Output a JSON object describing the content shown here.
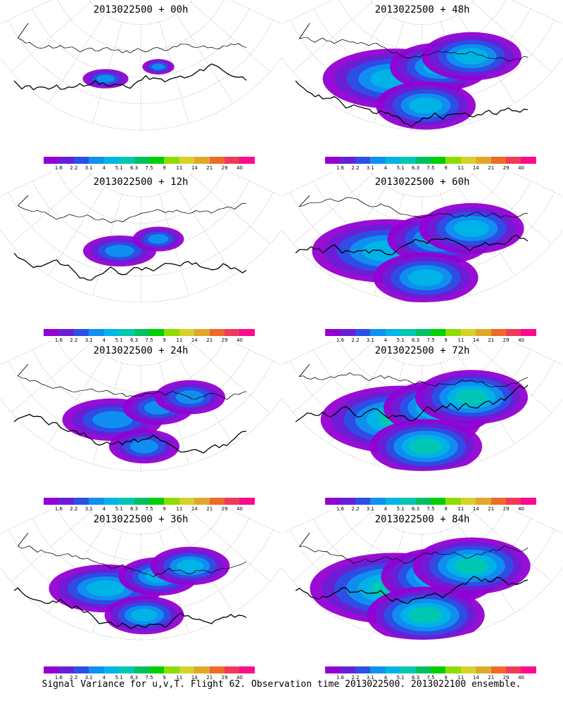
{
  "caption": "Signal Variance for u,v,T. Flight 62. Observation time 2013022500. 2013022100 ensemble.",
  "colorbar": {
    "labels": [
      "1.6",
      "2.2",
      "3.1",
      "4",
      "5.1",
      "6.3",
      "7.5",
      "9",
      "11",
      "14",
      "21",
      "29",
      "40"
    ],
    "colors": [
      "#9400d3",
      "#6a1fd6",
      "#2b50e6",
      "#0f91f0",
      "#00b5e6",
      "#00c8b0",
      "#00c060",
      "#00cf00",
      "#8fdc00",
      "#d6d22a",
      "#e0a82a",
      "#ee6a2a",
      "#f03a5a",
      "#ff0a8c"
    ]
  },
  "panels": [
    {
      "title": "2013022500 + 00h",
      "spread": 0.25,
      "intensity": 0.45,
      "offset": 0
    },
    {
      "title": "2013022500 + 48h",
      "spread": 0.78,
      "intensity": 0.55,
      "offset": 1
    },
    {
      "title": "2013022500 + 12h",
      "spread": 0.4,
      "intensity": 0.4,
      "offset": 2
    },
    {
      "title": "2013022500 + 60h",
      "spread": 0.82,
      "intensity": 0.55,
      "offset": 3
    },
    {
      "title": "2013022500 + 24h",
      "spread": 0.55,
      "intensity": 0.45,
      "offset": 4
    },
    {
      "title": "2013022500 + 72h",
      "spread": 0.88,
      "intensity": 0.62,
      "offset": 5
    },
    {
      "title": "2013022500 + 36h",
      "spread": 0.62,
      "intensity": 0.5,
      "offset": 6
    },
    {
      "title": "2013022500 + 84h",
      "spread": 0.92,
      "intensity": 0.7,
      "offset": 7
    }
  ]
}
